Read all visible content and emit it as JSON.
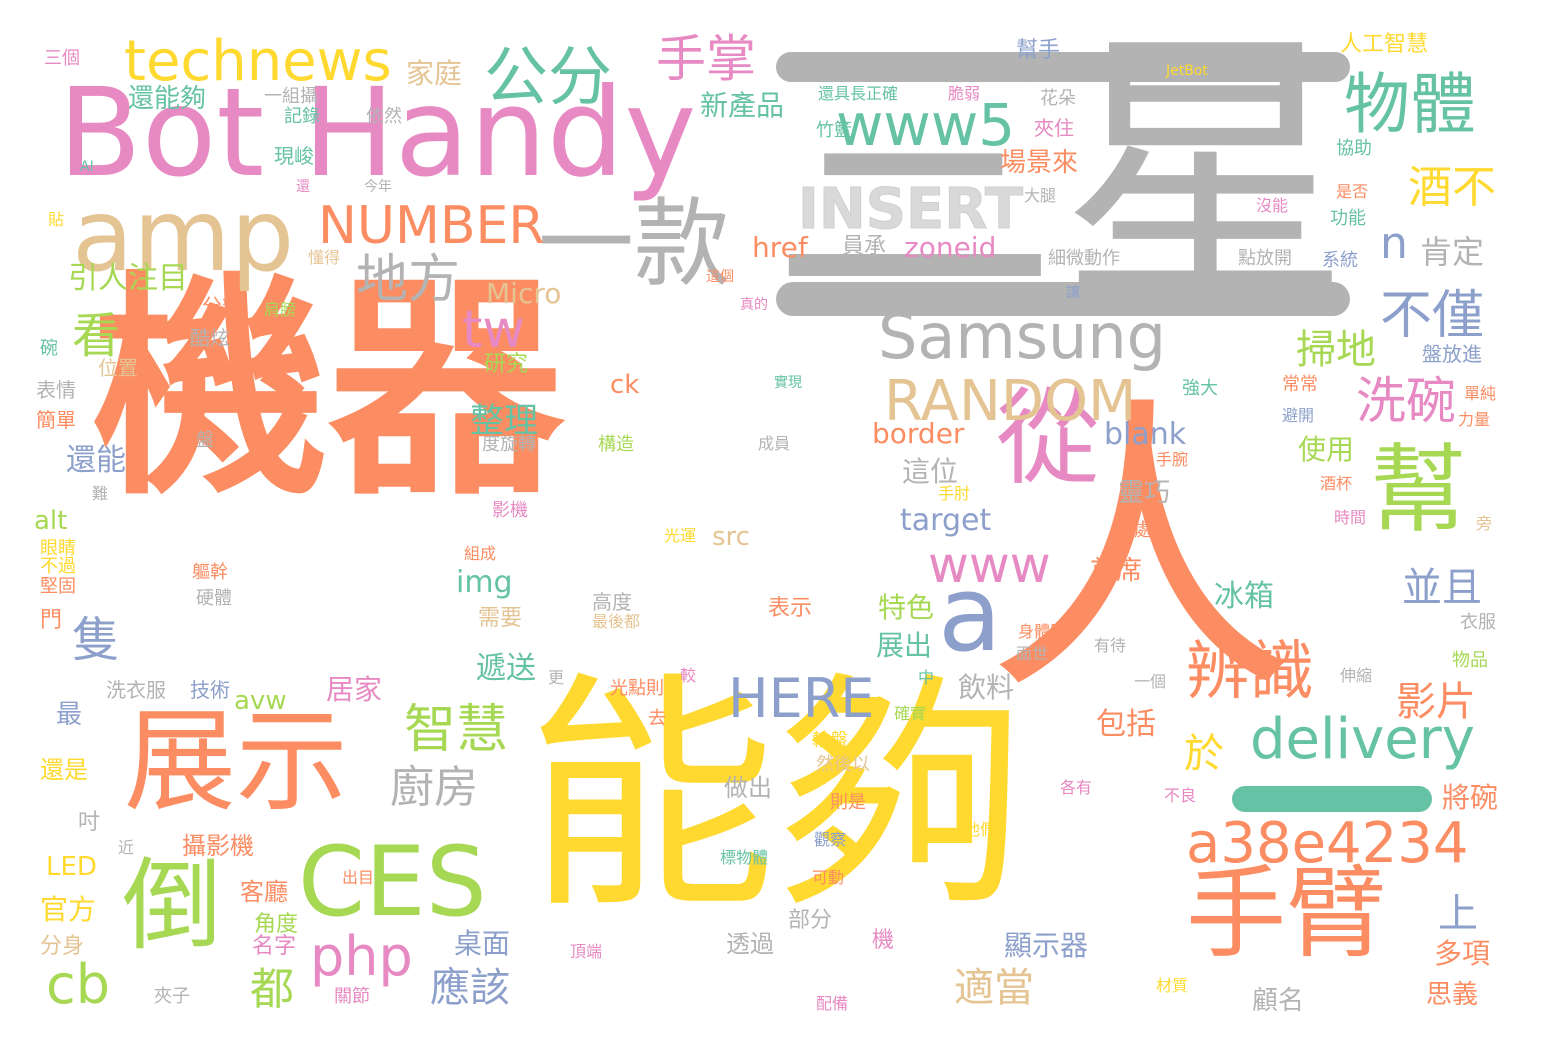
{
  "title": "word cloud",
  "palette": {
    "orange": "#fc8d62",
    "yellow": "#ffd92f",
    "pink": "#e78ac3",
    "grey": "#b3b3b3",
    "green": "#a6d854",
    "teal": "#66c2a5",
    "blue": "#8da0cb",
    "tan": "#e5c494"
  },
  "words": {
    "jiqi": "機器",
    "ren": "人",
    "sanxing": "三星",
    "nenggou": "能夠",
    "bothandy": "Bot Handy",
    "amp": "amp",
    "yikuan": "一款",
    "zhanshi": "展示",
    "cong": "從",
    "bang": "幫",
    "shoubi": "手臂",
    "ces": "CES",
    "dao": "倒",
    "technews": "technews",
    "gongfen": "公分",
    "shouzhang": "手掌",
    "wuti": "物體",
    "www5": "www5",
    "insert": "INSERT",
    "number": "NUMBER",
    "difang": "地方",
    "samsung": "Samsung",
    "random": "RANDOM",
    "a": "a",
    "www": "www",
    "bianshi": "辨識",
    "delivery": "delivery",
    "here": "HERE",
    "a38e": "a38e4234",
    "zhihui": "智慧",
    "chufang": "廚房",
    "php": "php",
    "cb": "cb",
    "yinggai": "應該",
    "shiyang": "適當",
    "dou": "都",
    "tw": "tw",
    "kan": "看",
    "zhi": "隻",
    "xiwan": "洗碗",
    "bujin": "不僅",
    "jiubu": "酒不",
    "n": "n",
    "saodi": "掃地",
    "yu": "於",
    "bingqie": "並且",
    "shang": "上",
    "yingpian": "影片",
    "zhengli": "整理",
    "blank": "blank",
    "border": "border",
    "target": "target",
    "src": "src",
    "img": "img",
    "zoneid": "zoneid",
    "href": "href",
    "micro": "Micro",
    "ck": "ck",
    "avw": "avw",
    "alt": "alt",
    "led": "LED",
    "jetbot": "JetBot",
    "ai": "AI",
    "xinchanpin": "新產品",
    "jiating": "家庭",
    "hainenggou": "還能夠",
    "yinrenzhumu": "引人注目",
    "huanneng": "還能",
    "zhuoxing": "這位",
    "lingqiao": "靈巧",
    "kendeng": "肯定",
    "changjinglai": "場景來",
    "tese": "特色",
    "zhanchu": "展出",
    "bingxiang": "冰箱",
    "shouxi": "首席",
    "juji": "居家",
    "disong": "遞送",
    "xuyao": "需要",
    "baokuo": "包括",
    "yinliao": "飲料",
    "xianshiqi": "顯示器",
    "zhuomian": "桌面",
    "guanfang": "官方",
    "sheyingji": "攝影機",
    "keting": "客廳",
    "duoxiang": "多項",
    "sisiyi": "思義",
    "guming": "顧名",
    "jiangwan": "將碗",
    "shiyong": "使用",
    "rengong": "人工智慧",
    "bangshou": "幫手",
    "sange": "三個",
    "zuo": "做出",
    "toutong": "透過",
    "bufen": "部分",
    "jiaodu": "角度",
    "mingzi": "名字",
    "ji": "機",
    "guanjie": "關節",
    "jiazi": "夾子",
    "fenshen": "分身",
    "jin": "近",
    "dou2": "吋",
    "zui": "最",
    "haishi": "還是",
    "xiyifu": "洗衣服",
    "jishu": "技術",
    "yanjiu": "研究",
    "weizhi": "位置",
    "kuxuan": "酷炫",
    "fenbian": "分辨",
    "jianbang": "肩膀",
    "dongde": "懂得",
    "xianjun": "現峻",
    "jilu": "記錄",
    "yizushe": "一組攝",
    "yiran": "依然",
    "huaduo": "花朵",
    "jiazhu": "夾住",
    "zhulan": "竹籃",
    "cuiruo": "脆弱",
    "haijuchang": "還具長正確",
    "jinnian": "今年",
    "huan": "還",
    "tie": "貼",
    "wan": "碗",
    "biaoqing": "表情",
    "jiandan": "簡單",
    "pan": "盤",
    "nan": "難",
    "yanjing": "眼睛",
    "buguo": "不過",
    "jiangu": "堅固",
    "men": "門",
    "qugan": "軀幹",
    "yingti": "硬體",
    "yingji": "影機",
    "zucheng": "組成",
    "gouzao": "構造",
    "duxuanzhuan": "度旋轉",
    "shixian": "實現",
    "chengyuan": "成員",
    "gaodu": "高度",
    "zuihoudou": "最後都",
    "biaoshi": "表示",
    "guangdianze": "光點則",
    "jiao": "較",
    "geng": "更",
    "qu": "去",
    "guangyun": "光運",
    "shouzhou": "手肘",
    "chuli": "處理",
    "shoubiw": "手腕",
    "qiangda": "強大",
    "yuancheng": "員承",
    "xiweidongzuo": "細微動作",
    "dianfangkai": "點放開",
    "xitong": "系統",
    "rang": "讓",
    "zhenci": "真的",
    "zhege": "這個",
    "xiezhu": "協助",
    "shifou": "是否",
    "gongneng": "功能",
    "meineng": "沒能",
    "datui": "大腿",
    "changchang": "常常",
    "bikai": "避開",
    "pangfangjin": "盤放進",
    "dancun": "單純",
    "liliang": "力量",
    "jiubei": "酒杯",
    "shijian": "時間",
    "pang": "旁",
    "yifu": "衣服",
    "wupin": "物品",
    "shensuo": "伸縮",
    "youdai": "有待",
    "shentize": "身體則",
    "mianshi": "面世",
    "zhong": "中",
    "yige": "一個",
    "queshi": "確實",
    "lunpan": "輪盤",
    "ranhouyi": "然後以",
    "zeshi": "則是",
    "geyou": "各有",
    "buliang": "不良",
    "tamen": "他們",
    "guancha": "觀察",
    "biaowuti": "標物體",
    "kedong": "可動",
    "peibei": "配備",
    "caizhi": "材質",
    "chumu": "出目",
    "dingduan": "頂端"
  }
}
